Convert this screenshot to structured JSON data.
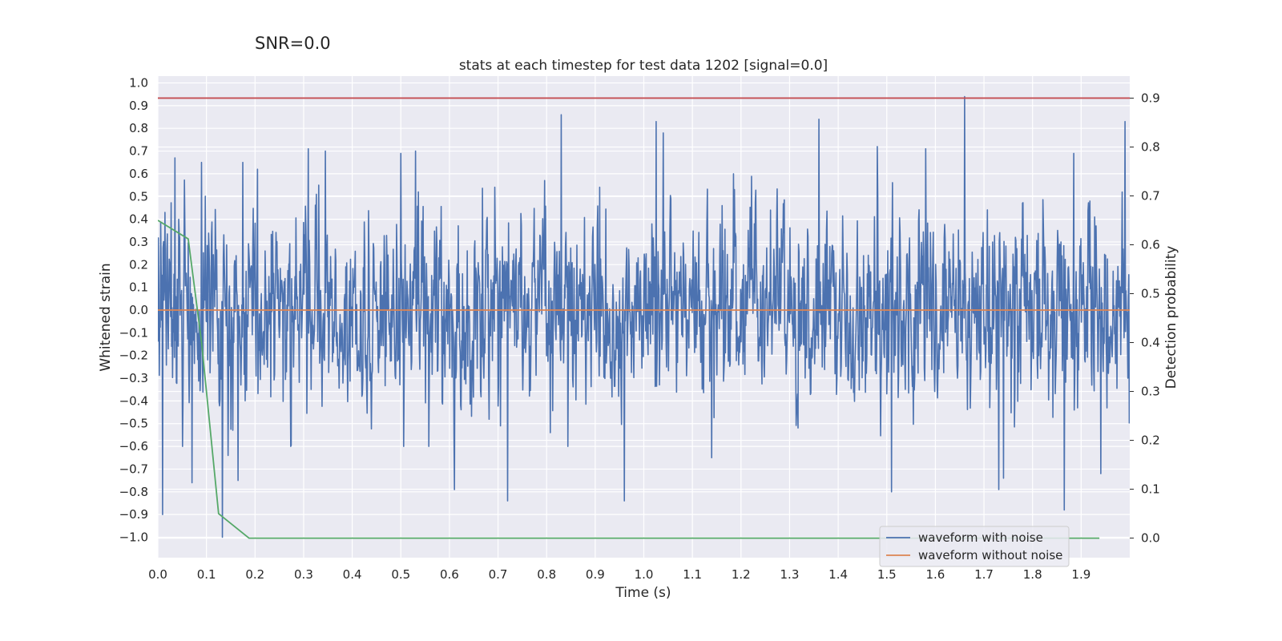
{
  "suptitle": "SNR=0.0",
  "chart_data": {
    "type": "line",
    "title": "stats at each timestep for test data 1202 [signal=0.0]",
    "xlabel": "Time (s)",
    "ylabel": "Whitened strain",
    "ylabel_right": "Detection probability",
    "xlim": [
      0.0,
      2.0
    ],
    "ylim": [
      -1.09,
      1.03
    ],
    "ylim_right": [
      -0.04,
      0.945
    ],
    "x_ticks": [
      "0.0",
      "0.1",
      "0.2",
      "0.3",
      "0.4",
      "0.5",
      "0.6",
      "0.7",
      "0.8",
      "0.9",
      "1.0",
      "1.1",
      "1.2",
      "1.3",
      "1.4",
      "1.5",
      "1.6",
      "1.7",
      "1.8",
      "1.9"
    ],
    "y_ticks": [
      "1.0",
      "0.9",
      "0.8",
      "0.7",
      "0.6",
      "0.5",
      "0.4",
      "0.3",
      "0.2",
      "0.1",
      "0.0",
      "−0.1",
      "−0.2",
      "−0.3",
      "−0.4",
      "−0.5",
      "−0.6",
      "−0.7",
      "−0.8",
      "−0.9",
      "−1.0"
    ],
    "y_ticks_right": [
      "0.9",
      "0.8",
      "0.7",
      "0.6",
      "0.5",
      "0.4",
      "0.3",
      "0.2",
      "0.1",
      "0.0"
    ],
    "grid": true,
    "legend_position": "lower-right",
    "series": [
      {
        "name": "waveform with noise",
        "axis": "left",
        "color": "#4c72b0",
        "sample_rate": 1024,
        "duration": 2.0,
        "peaks": [
          {
            "x": 0.01,
            "y": -0.9
          },
          {
            "x": 0.015,
            "y": 0.43
          },
          {
            "x": 0.035,
            "y": 0.67
          },
          {
            "x": 0.07,
            "y": -0.76
          },
          {
            "x": 0.09,
            "y": 0.65
          },
          {
            "x": 0.133,
            "y": -1.0
          },
          {
            "x": 0.145,
            "y": -0.64
          },
          {
            "x": 0.165,
            "y": -0.75
          },
          {
            "x": 0.175,
            "y": 0.65
          },
          {
            "x": 0.205,
            "y": 0.62
          },
          {
            "x": 0.31,
            "y": 0.71
          },
          {
            "x": 0.345,
            "y": 0.7
          },
          {
            "x": 0.5,
            "y": 0.69
          },
          {
            "x": 0.53,
            "y": 0.7
          },
          {
            "x": 0.61,
            "y": -0.79
          },
          {
            "x": 0.72,
            "y": -0.84
          },
          {
            "x": 0.83,
            "y": 0.86
          },
          {
            "x": 0.96,
            "y": -0.84
          },
          {
            "x": 1.025,
            "y": 0.83
          },
          {
            "x": 1.04,
            "y": 0.78
          },
          {
            "x": 1.14,
            "y": -0.65
          },
          {
            "x": 1.36,
            "y": 0.84
          },
          {
            "x": 1.48,
            "y": 0.72
          },
          {
            "x": 1.51,
            "y": -0.8
          },
          {
            "x": 1.58,
            "y": 0.71
          },
          {
            "x": 1.66,
            "y": 0.94
          },
          {
            "x": 1.73,
            "y": -0.79
          },
          {
            "x": 1.74,
            "y": -0.74
          },
          {
            "x": 1.865,
            "y": -0.88
          },
          {
            "x": 1.885,
            "y": 0.69
          },
          {
            "x": 1.94,
            "y": -0.72
          },
          {
            "x": 1.99,
            "y": 0.83
          }
        ]
      },
      {
        "name": "waveform without noise",
        "axis": "left",
        "color": "#dd8452",
        "points": [
          [
            0.0,
            0.0
          ],
          [
            2.0,
            0.0
          ]
        ]
      },
      {
        "axis": "right",
        "color": "#55a868",
        "points": [
          [
            0.0,
            0.65
          ],
          [
            0.0625,
            0.612
          ],
          [
            0.09,
            0.4
          ],
          [
            0.125,
            0.05
          ],
          [
            0.1875,
            0.0
          ],
          [
            1.9375,
            0.0
          ]
        ]
      },
      {
        "axis": "right",
        "color": "#c44e52",
        "points": [
          [
            0.0,
            0.9
          ],
          [
            2.0,
            0.9
          ]
        ]
      }
    ]
  }
}
